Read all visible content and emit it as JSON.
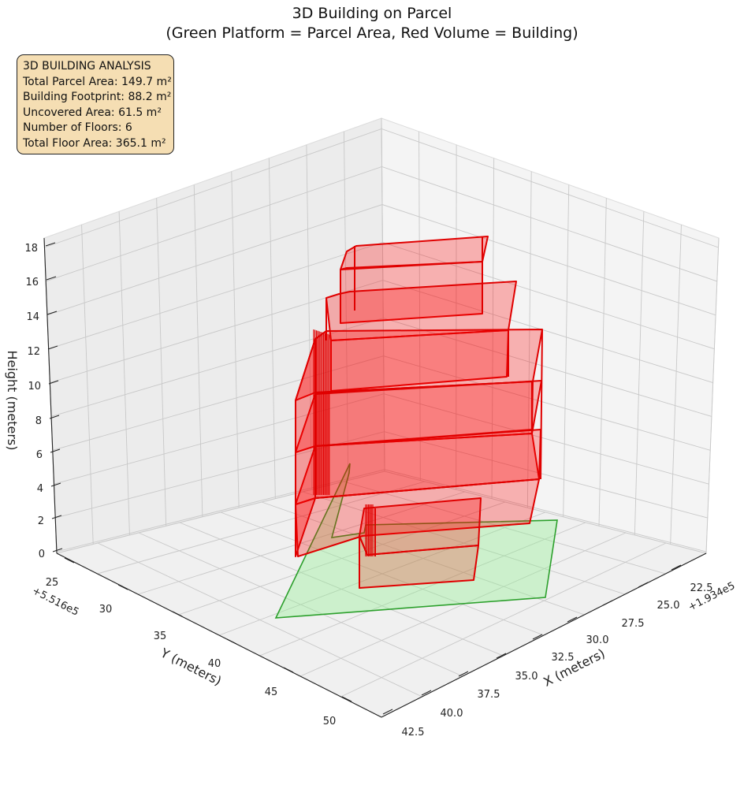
{
  "title_line1": "3D Building on Parcel",
  "title_line2": "(Green Platform = Parcel Area, Red Volume = Building)",
  "info_box": {
    "heading": "3D BUILDING ANALYSIS",
    "lines": [
      "Total Parcel Area: 149.7 m²",
      "Building Footprint: 88.2 m²",
      "Uncovered Area: 61.5 m²",
      "Number of Floors: 6",
      "Total Floor Area: 365.1 m²"
    ],
    "background_color": "#f5deb3"
  },
  "chart_data": {
    "type": "3d-polygons",
    "xlabel": "X (meters)",
    "ylabel": "Y (meters)",
    "zlabel": "Height (meters)",
    "x_offset_label": "+1.934e5",
    "y_offset_label": "+5.516e5",
    "x_ticks": [
      "22.5",
      "25.0",
      "27.5",
      "30.0",
      "32.5",
      "35.0",
      "37.5",
      "40.0",
      "42.5"
    ],
    "y_ticks": [
      "25",
      "30",
      "35",
      "40",
      "45",
      "50"
    ],
    "z_ticks": [
      "0",
      "2",
      "4",
      "6",
      "8",
      "10",
      "12",
      "14",
      "16",
      "18"
    ],
    "zlim": [
      0,
      18
    ],
    "grid": true,
    "parcel": {
      "name": "Parcel Area",
      "color": "#2ca02c",
      "fill": "#90ee90"
    },
    "building": {
      "name": "Building",
      "color": "#e00000",
      "fill": "#ff0000",
      "floors": 6
    }
  }
}
